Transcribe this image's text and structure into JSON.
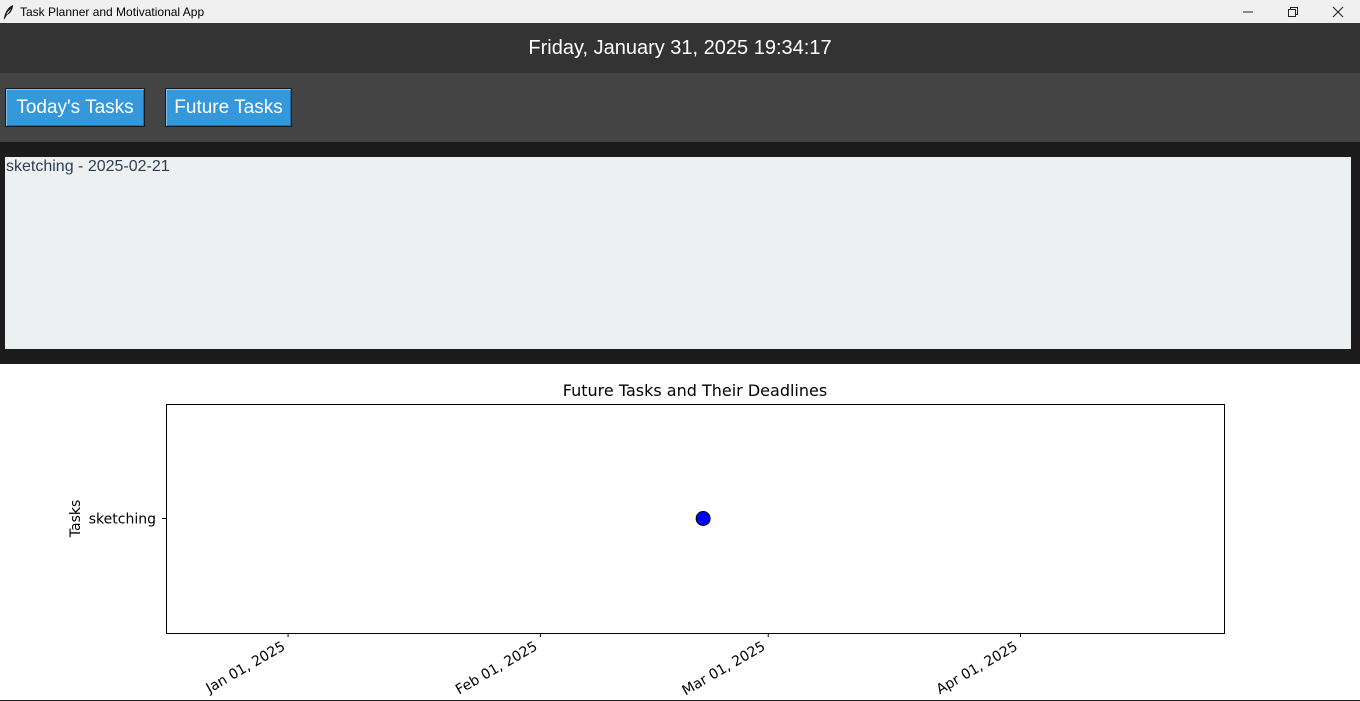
{
  "window": {
    "title": "Task Planner and Motivational App",
    "controls": [
      "minimize-icon",
      "restore-icon",
      "close-icon"
    ]
  },
  "header": {
    "datetime": "Friday, January 31, 2025 19:34:17"
  },
  "nav": {
    "today_label": "Today's Tasks",
    "future_label": "Future Tasks"
  },
  "task_list": {
    "items": [
      "sketching - 2025-02-21"
    ]
  },
  "colors": {
    "header_bg": "#333333",
    "nav_bg": "#444444",
    "button_bg": "#3498db",
    "list_bg": "#ecf0f1",
    "marker": "#0000ff"
  },
  "chart_data": {
    "type": "scatter",
    "title": "Future Tasks and Their Deadlines",
    "xlabel": "",
    "ylabel": "Tasks",
    "x_tick_labels": [
      "Jan 01, 2025",
      "Feb 01, 2025",
      "Mar 01, 2025",
      "Apr 01, 2025"
    ],
    "x_ticks": [
      "2025-01-01",
      "2025-02-01",
      "2025-03-01",
      "2025-04-01"
    ],
    "xlim": [
      "2024-12-17",
      "2025-04-26"
    ],
    "y_categories": [
      "sketching"
    ],
    "points": [
      {
        "task": "sketching",
        "deadline": "2025-02-21"
      }
    ],
    "grid": false,
    "legend": "none"
  }
}
